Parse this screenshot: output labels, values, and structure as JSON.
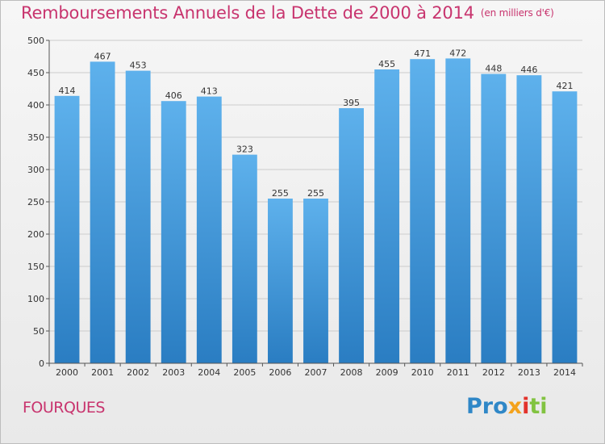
{
  "header": {
    "title": "Remboursements Annuels de la Dette de 2000 à 2014",
    "subtitle": "(en milliers d'€)"
  },
  "footer": {
    "commune": "FOURQUES",
    "logo": [
      "Pro",
      "x",
      "i",
      "ti"
    ]
  },
  "colors": {
    "title": "#c8346e",
    "bar_top": "#5eb1ec",
    "bar_bottom": "#2a7dc2",
    "grid": "#cccccc"
  },
  "chart_data": {
    "type": "bar",
    "title": "Remboursements Annuels de la Dette de 2000 à 2014",
    "subtitle": "(en milliers d'€)",
    "categories": [
      "2000",
      "2001",
      "2002",
      "2003",
      "2004",
      "2005",
      "2006",
      "2007",
      "2008",
      "2009",
      "2010",
      "2011",
      "2012",
      "2013",
      "2014"
    ],
    "values": [
      414,
      467,
      453,
      406,
      413,
      323,
      255,
      255,
      395,
      455,
      471,
      472,
      448,
      446,
      421
    ],
    "yticks": [
      0,
      50,
      100,
      150,
      200,
      250,
      300,
      350,
      400,
      450,
      500
    ],
    "ylim": [
      0,
      500
    ],
    "grid": true,
    "xlabel": "",
    "ylabel": ""
  }
}
